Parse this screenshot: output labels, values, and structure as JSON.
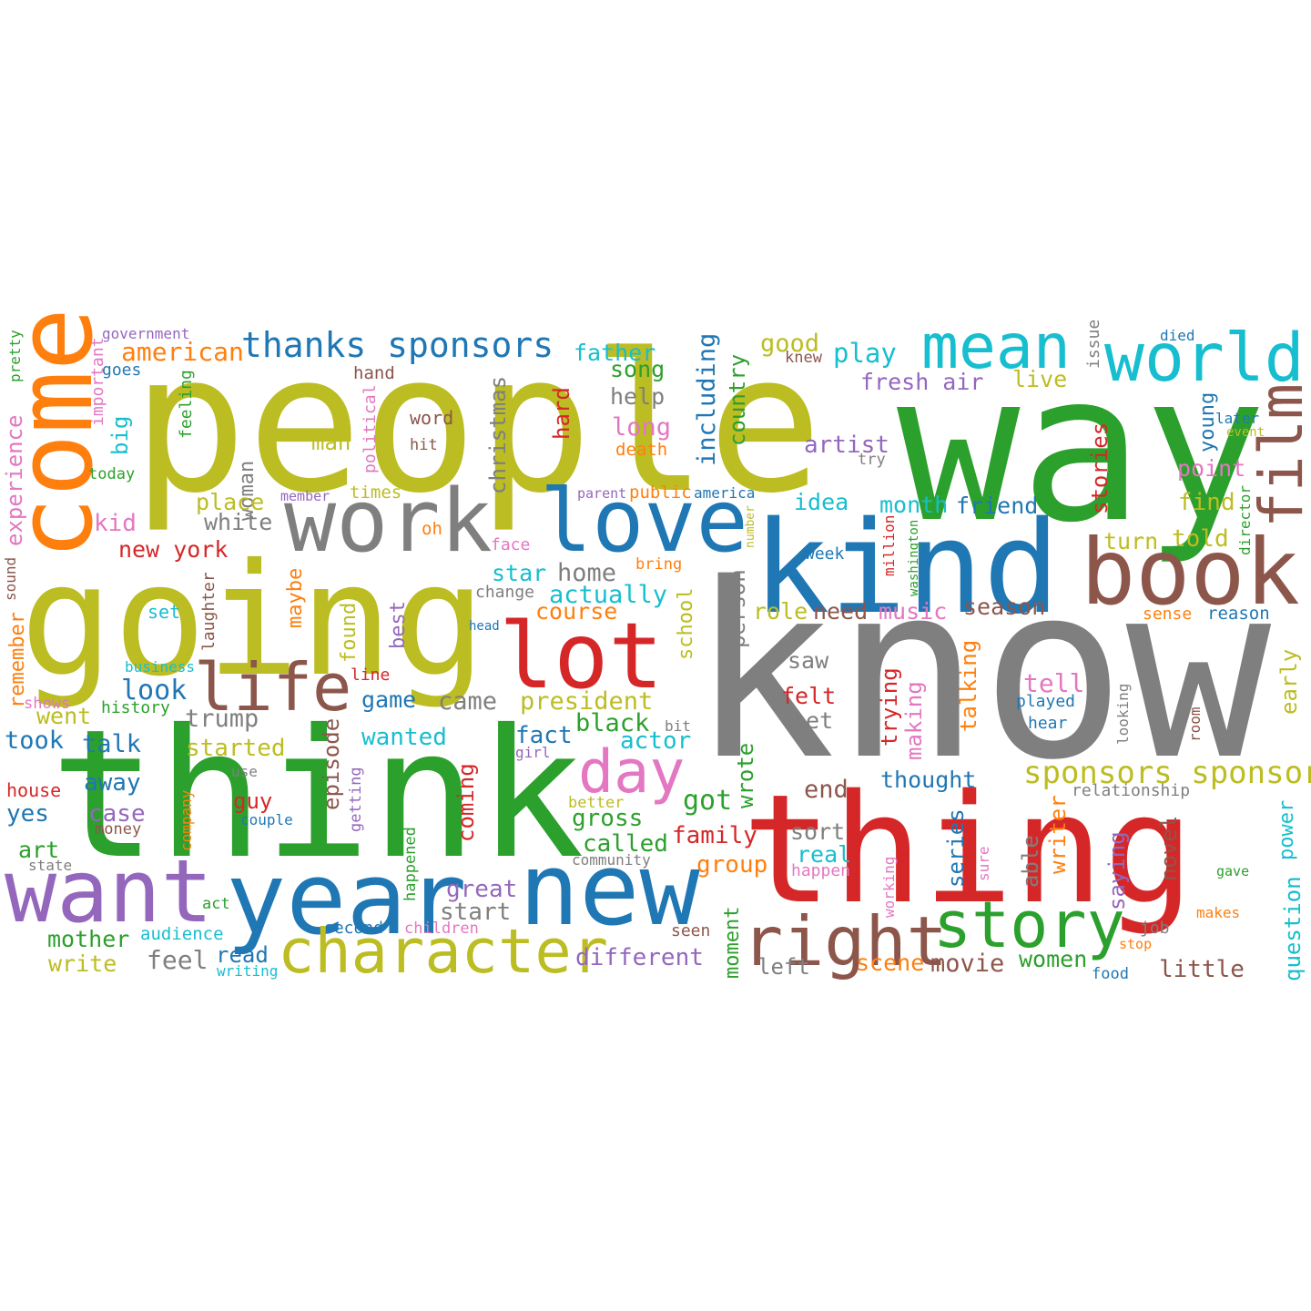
{
  "colors": {
    "olive": "#bcbd22",
    "green": "#2ca02c",
    "gray": "#7f7f7f",
    "red": "#d62728",
    "blue": "#1f77b4",
    "orange": "#ff7f0e",
    "purple": "#9467bd",
    "brown": "#8c564b",
    "pink": "#e377c2",
    "cyan": "#17becf"
  },
  "words": [
    {
      "text": "know",
      "color": "gray"
    },
    {
      "text": "people",
      "color": "olive"
    },
    {
      "text": "way",
      "color": "green"
    },
    {
      "text": "think",
      "color": "green"
    },
    {
      "text": "going",
      "color": "olive"
    },
    {
      "text": "thing",
      "color": "red"
    },
    {
      "text": "kind",
      "color": "blue"
    },
    {
      "text": "come",
      "color": "orange"
    },
    {
      "text": "work",
      "color": "gray"
    },
    {
      "text": "love",
      "color": "blue"
    },
    {
      "text": "book",
      "color": "brown"
    },
    {
      "text": "lot",
      "color": "red"
    },
    {
      "text": "want",
      "color": "purple"
    },
    {
      "text": "year",
      "color": "blue"
    },
    {
      "text": "new",
      "color": "blue"
    },
    {
      "text": "world",
      "color": "cyan"
    },
    {
      "text": "mean",
      "color": "cyan"
    },
    {
      "text": "film",
      "color": "brown"
    },
    {
      "text": "life",
      "color": "brown"
    },
    {
      "text": "character",
      "color": "olive"
    },
    {
      "text": "right",
      "color": "brown"
    },
    {
      "text": "story",
      "color": "green"
    },
    {
      "text": "day",
      "color": "pink"
    },
    {
      "text": "thanks sponsors",
      "color": "blue"
    },
    {
      "text": "sponsors sponsor",
      "color": "olive"
    },
    {
      "text": "american",
      "color": "orange"
    },
    {
      "text": "government",
      "color": "purple"
    },
    {
      "text": "important",
      "color": "pink"
    },
    {
      "text": "goes",
      "color": "blue"
    },
    {
      "text": "pretty",
      "color": "green"
    },
    {
      "text": "experience",
      "color": "pink"
    },
    {
      "text": "big",
      "color": "cyan"
    },
    {
      "text": "today",
      "color": "green"
    },
    {
      "text": "kid",
      "color": "pink"
    },
    {
      "text": "feeling",
      "color": "green"
    },
    {
      "text": "hand",
      "color": "brown"
    },
    {
      "text": "word",
      "color": "brown"
    },
    {
      "text": "hit",
      "color": "brown"
    },
    {
      "text": "political",
      "color": "pink"
    },
    {
      "text": "christmas",
      "color": "gray"
    },
    {
      "text": "woman",
      "color": "gray"
    },
    {
      "text": "man",
      "color": "olive"
    },
    {
      "text": "place",
      "color": "olive"
    },
    {
      "text": "white",
      "color": "gray"
    },
    {
      "text": "new york",
      "color": "red"
    },
    {
      "text": "member",
      "color": "purple"
    },
    {
      "text": "times",
      "color": "olive"
    },
    {
      "text": "oh",
      "color": "orange"
    },
    {
      "text": "face",
      "color": "pink"
    },
    {
      "text": "father",
      "color": "cyan"
    },
    {
      "text": "song",
      "color": "green"
    },
    {
      "text": "help",
      "color": "gray"
    },
    {
      "text": "long",
      "color": "pink"
    },
    {
      "text": "death",
      "color": "orange"
    },
    {
      "text": "hard",
      "color": "red"
    },
    {
      "text": "including",
      "color": "blue"
    },
    {
      "text": "country",
      "color": "green"
    },
    {
      "text": "good",
      "color": "olive"
    },
    {
      "text": "play",
      "color": "cyan"
    },
    {
      "text": "knew",
      "color": "brown"
    },
    {
      "text": "fresh air",
      "color": "purple"
    },
    {
      "text": "live",
      "color": "olive"
    },
    {
      "text": "artist",
      "color": "purple"
    },
    {
      "text": "try",
      "color": "gray"
    },
    {
      "text": "idea",
      "color": "cyan"
    },
    {
      "text": "month",
      "color": "cyan"
    },
    {
      "text": "friend",
      "color": "blue"
    },
    {
      "text": "public",
      "color": "orange"
    },
    {
      "text": "parent",
      "color": "purple"
    },
    {
      "text": "america",
      "color": "blue"
    },
    {
      "text": "issue",
      "color": "gray"
    },
    {
      "text": "died",
      "color": "blue"
    },
    {
      "text": "later",
      "color": "blue"
    },
    {
      "text": "event",
      "color": "olive"
    },
    {
      "text": "young",
      "color": "blue"
    },
    {
      "text": "stories",
      "color": "red"
    },
    {
      "text": "point",
      "color": "pink"
    },
    {
      "text": "find",
      "color": "olive"
    },
    {
      "text": "turn",
      "color": "olive"
    },
    {
      "text": "told",
      "color": "olive"
    },
    {
      "text": "director",
      "color": "green"
    },
    {
      "text": "number",
      "color": "olive"
    },
    {
      "text": "million",
      "color": "red"
    },
    {
      "text": "washington",
      "color": "green"
    },
    {
      "text": "week",
      "color": "blue"
    },
    {
      "text": "sound",
      "color": "brown"
    },
    {
      "text": "remember",
      "color": "orange"
    },
    {
      "text": "laughter",
      "color": "brown"
    },
    {
      "text": "set",
      "color": "cyan"
    },
    {
      "text": "maybe",
      "color": "orange"
    },
    {
      "text": "found",
      "color": "olive"
    },
    {
      "text": "best",
      "color": "purple"
    },
    {
      "text": "star",
      "color": "cyan"
    },
    {
      "text": "home",
      "color": "gray"
    },
    {
      "text": "change",
      "color": "gray"
    },
    {
      "text": "bring",
      "color": "orange"
    },
    {
      "text": "actually",
      "color": "cyan"
    },
    {
      "text": "course",
      "color": "orange"
    },
    {
      "text": "school",
      "color": "olive"
    },
    {
      "text": "person",
      "color": "gray"
    },
    {
      "text": "role",
      "color": "olive"
    },
    {
      "text": "need",
      "color": "brown"
    },
    {
      "text": "music",
      "color": "pink"
    },
    {
      "text": "season",
      "color": "brown"
    },
    {
      "text": "sense",
      "color": "orange"
    },
    {
      "text": "reason",
      "color": "blue"
    },
    {
      "text": "head",
      "color": "blue"
    },
    {
      "text": "business",
      "color": "cyan"
    },
    {
      "text": "look",
      "color": "blue"
    },
    {
      "text": "shows",
      "color": "pink"
    },
    {
      "text": "history",
      "color": "green"
    },
    {
      "text": "line",
      "color": "red"
    },
    {
      "text": "went",
      "color": "olive"
    },
    {
      "text": "trump",
      "color": "gray"
    },
    {
      "text": "episode",
      "color": "brown"
    },
    {
      "text": "game",
      "color": "blue"
    },
    {
      "text": "came",
      "color": "gray"
    },
    {
      "text": "president",
      "color": "olive"
    },
    {
      "text": "black",
      "color": "green"
    },
    {
      "text": "saw",
      "color": "gray"
    },
    {
      "text": "felt",
      "color": "red"
    },
    {
      "text": "let",
      "color": "gray"
    },
    {
      "text": "trying",
      "color": "red"
    },
    {
      "text": "making",
      "color": "pink"
    },
    {
      "text": "talking",
      "color": "orange"
    },
    {
      "text": "tell",
      "color": "pink"
    },
    {
      "text": "played",
      "color": "blue"
    },
    {
      "text": "hear",
      "color": "blue"
    },
    {
      "text": "looking",
      "color": "gray"
    },
    {
      "text": "room",
      "color": "brown"
    },
    {
      "text": "early",
      "color": "olive"
    },
    {
      "text": "took",
      "color": "blue"
    },
    {
      "text": "talk",
      "color": "blue"
    },
    {
      "text": "started",
      "color": "olive"
    },
    {
      "text": "wanted",
      "color": "cyan"
    },
    {
      "text": "fact",
      "color": "blue"
    },
    {
      "text": "actor",
      "color": "cyan"
    },
    {
      "text": "bit",
      "color": "gray"
    },
    {
      "text": "girl",
      "color": "purple"
    },
    {
      "text": "wrote",
      "color": "green"
    },
    {
      "text": "house",
      "color": "red"
    },
    {
      "text": "use",
      "color": "gray"
    },
    {
      "text": "away",
      "color": "blue"
    },
    {
      "text": "guy",
      "color": "red"
    },
    {
      "text": "getting",
      "color": "purple"
    },
    {
      "text": "coming",
      "color": "red"
    },
    {
      "text": "got",
      "color": "green"
    },
    {
      "text": "end",
      "color": "brown"
    },
    {
      "text": "thought",
      "color": "blue"
    },
    {
      "text": "relationship",
      "color": "gray"
    },
    {
      "text": "yes",
      "color": "blue"
    },
    {
      "text": "case",
      "color": "purple"
    },
    {
      "text": "money",
      "color": "brown"
    },
    {
      "text": "company",
      "color": "orange"
    },
    {
      "text": "couple",
      "color": "blue"
    },
    {
      "text": "better",
      "color": "olive"
    },
    {
      "text": "gross",
      "color": "green"
    },
    {
      "text": "family",
      "color": "red"
    },
    {
      "text": "sort",
      "color": "gray"
    },
    {
      "text": "series",
      "color": "blue"
    },
    {
      "text": "able",
      "color": "gray"
    },
    {
      "text": "writer",
      "color": "orange"
    },
    {
      "text": "power",
      "color": "cyan"
    },
    {
      "text": "art",
      "color": "green"
    },
    {
      "text": "state",
      "color": "gray"
    },
    {
      "text": "happened",
      "color": "green"
    },
    {
      "text": "called",
      "color": "green"
    },
    {
      "text": "community",
      "color": "gray"
    },
    {
      "text": "group",
      "color": "orange"
    },
    {
      "text": "real",
      "color": "cyan"
    },
    {
      "text": "happen",
      "color": "pink"
    },
    {
      "text": "working",
      "color": "pink"
    },
    {
      "text": "sure",
      "color": "pink"
    },
    {
      "text": "saying",
      "color": "purple"
    },
    {
      "text": "novel",
      "color": "brown"
    },
    {
      "text": "gave",
      "color": "green"
    },
    {
      "text": "question",
      "color": "cyan"
    },
    {
      "text": "act",
      "color": "green"
    },
    {
      "text": "great",
      "color": "purple"
    },
    {
      "text": "mother",
      "color": "green"
    },
    {
      "text": "audience",
      "color": "cyan"
    },
    {
      "text": "start",
      "color": "gray"
    },
    {
      "text": "second",
      "color": "blue"
    },
    {
      "text": "children",
      "color": "pink"
    },
    {
      "text": "seen",
      "color": "brown"
    },
    {
      "text": "moment",
      "color": "green"
    },
    {
      "text": "makes",
      "color": "orange"
    },
    {
      "text": "job",
      "color": "gray"
    },
    {
      "text": "stop",
      "color": "orange"
    },
    {
      "text": "write",
      "color": "olive"
    },
    {
      "text": "feel",
      "color": "gray"
    },
    {
      "text": "read",
      "color": "blue"
    },
    {
      "text": "writing",
      "color": "cyan"
    },
    {
      "text": "different",
      "color": "purple"
    },
    {
      "text": "left",
      "color": "gray"
    },
    {
      "text": "scene",
      "color": "orange"
    },
    {
      "text": "movie",
      "color": "brown"
    },
    {
      "text": "women",
      "color": "green"
    },
    {
      "text": "food",
      "color": "blue"
    },
    {
      "text": "little",
      "color": "brown"
    }
  ]
}
